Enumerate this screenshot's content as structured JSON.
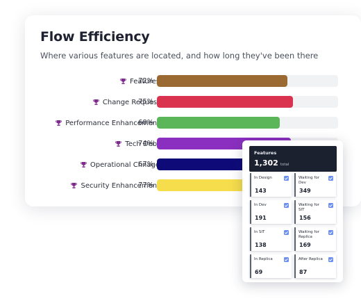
{
  "card": {
    "title": "Flow Efficiency",
    "subtitle": "Where various features are located, and how long they've been there"
  },
  "rows": [
    {
      "label": "Features",
      "pct_text": "72%",
      "value": 72,
      "color": "#9b6a33"
    },
    {
      "label": "Change Request",
      "pct_text": "75%",
      "value": 75,
      "color": "#d9334f"
    },
    {
      "label": "Performance Enhancement",
      "pct_text": "68%",
      "value": 68,
      "color": "#5bb559"
    },
    {
      "label": "Tech Debt",
      "pct_text": "74%",
      "value": 74,
      "color": "#8a2fbf"
    },
    {
      "label": "Operational Chnage",
      "pct_text": "67%",
      "value": 67,
      "color": "#0e0a78"
    },
    {
      "label": "Security Enhancement",
      "pct_text": "77%",
      "value": 77,
      "color": "#f6dd4c"
    }
  ],
  "icons": {
    "row": "trophy-icon",
    "tile": "checkbox-checked-icon"
  },
  "colors": {
    "trophy": "#7c2a8c",
    "checkbox": "#6c8ef2",
    "panel_header": "#1c2130"
  },
  "panel": {
    "title": "Features",
    "total": "1,302",
    "total_label": "total",
    "tiles": [
      {
        "label": "In Design",
        "value": "143"
      },
      {
        "label": "Waiting for Dev",
        "value": "349"
      },
      {
        "label": "In Dev",
        "value": "191"
      },
      {
        "label": "Waiting for SIT",
        "value": "156"
      },
      {
        "label": "In SIT",
        "value": "138"
      },
      {
        "label": "Waiting for Replica",
        "value": "169"
      },
      {
        "label": "In Replica",
        "value": "69"
      },
      {
        "label": "After Replica",
        "value": "87"
      }
    ]
  }
}
